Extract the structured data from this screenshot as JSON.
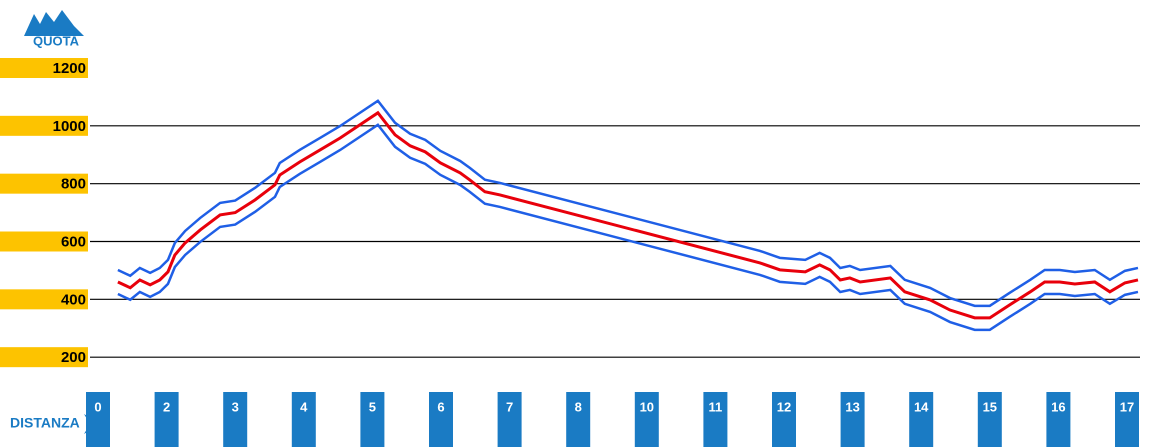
{
  "chart_data": {
    "type": "line",
    "y_label": "QUOTA",
    "x_label": "DISTANZA",
    "ylim": [
      0,
      1200
    ],
    "yticks": [
      200,
      400,
      600,
      800,
      1000,
      1200
    ],
    "xlim": [
      0,
      15
    ],
    "xticks": [
      {
        "value": 0,
        "label": "0"
      },
      {
        "value": 1,
        "label": "2"
      },
      {
        "value": 2,
        "label": "3"
      },
      {
        "value": 3,
        "label": "4"
      },
      {
        "value": 4,
        "label": "5"
      },
      {
        "value": 5,
        "label": "6"
      },
      {
        "value": 6,
        "label": "7"
      },
      {
        "value": 7,
        "label": "8"
      },
      {
        "value": 8,
        "label": "10"
      },
      {
        "value": 9,
        "label": "11"
      },
      {
        "value": 10,
        "label": "12"
      },
      {
        "value": 11,
        "label": "13"
      },
      {
        "value": 12,
        "label": "14"
      },
      {
        "value": 13,
        "label": "15"
      },
      {
        "value": 14,
        "label": "16"
      },
      {
        "value": 15,
        "label": "17"
      }
    ],
    "grid": true,
    "color": "#e8000b",
    "edge_color": "#1f5fe6",
    "x": [
      0.29,
      0.47,
      0.61,
      0.76,
      0.9,
      1.02,
      1.12,
      1.27,
      1.49,
      1.78,
      2.0,
      2.29,
      2.58,
      2.65,
      2.94,
      3.24,
      3.53,
      4.08,
      4.33,
      4.55,
      4.77,
      4.99,
      5.28,
      5.42,
      5.64,
      5.86,
      9.65,
      9.94,
      10.31,
      10.52,
      10.67,
      10.82,
      10.96,
      11.11,
      11.55,
      11.76,
      12.13,
      12.42,
      12.78,
      13.0,
      13.29,
      13.59,
      13.8,
      14.02,
      14.24,
      14.53,
      14.75,
      14.97,
      15.16
    ],
    "values": [
      460,
      440,
      467,
      450,
      467,
      495,
      553,
      595,
      640,
      692,
      700,
      744,
      796,
      830,
      875,
      917,
      958,
      1045,
      969,
      931,
      910,
      872,
      837,
      813,
      772,
      761,
      526,
      502,
      495,
      519,
      502,
      467,
      474,
      460,
      474,
      426,
      398,
      363,
      336,
      336,
      381,
      426,
      460,
      460,
      453,
      460,
      426,
      457,
      467
    ]
  }
}
